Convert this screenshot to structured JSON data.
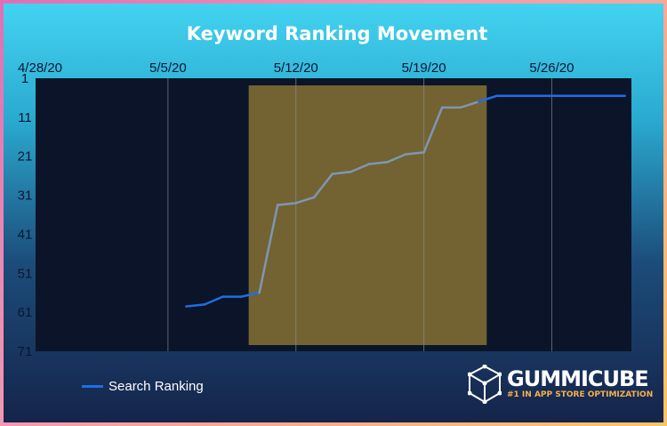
{
  "colors": {
    "plot_bg": "#0b1428",
    "line": "#1d6fe6",
    "line_highlighted": "#7f96b4",
    "highlight_band": "#7d6a33",
    "gridline": "#8a8f99",
    "logo_accent": "#f7b04a"
  },
  "chart_data": {
    "type": "line",
    "title": "Keyword Ranking Movement",
    "x_axis": {
      "position": "top",
      "tick_labels": [
        "4/28/20",
        "5/5/20",
        "5/12/20",
        "5/19/20",
        "5/26/20"
      ],
      "range": [
        "2020-04-28",
        "2020-05-30"
      ],
      "grid": true
    },
    "y_axis": {
      "inverted": true,
      "range": [
        1,
        71
      ],
      "ticks": [
        1,
        11,
        21,
        31,
        41,
        51,
        61,
        71
      ],
      "grid": false
    },
    "highlight_band": {
      "x_start": "2020-05-10",
      "x_end": "2020-05-22"
    },
    "legend": {
      "placement": "bottom-left"
    },
    "series": [
      {
        "name": "Search Ranking",
        "color": "#1d6fe6",
        "points": [
          [
            "2020-05-06",
            59.5
          ],
          [
            "2020-05-07",
            59
          ],
          [
            "2020-05-08",
            57
          ],
          [
            "2020-05-09",
            57
          ],
          [
            "2020-05-10",
            56
          ],
          [
            "2020-05-11",
            33.5
          ],
          [
            "2020-05-12",
            33
          ],
          [
            "2020-05-13",
            31.5
          ],
          [
            "2020-05-14",
            25.5
          ],
          [
            "2020-05-15",
            25
          ],
          [
            "2020-05-16",
            23
          ],
          [
            "2020-05-17",
            22.5
          ],
          [
            "2020-05-18",
            20.5
          ],
          [
            "2020-05-19",
            20
          ],
          [
            "2020-05-20",
            8.5
          ],
          [
            "2020-05-21",
            8.5
          ],
          [
            "2020-05-22",
            7
          ],
          [
            "2020-05-23",
            5.5
          ],
          [
            "2020-05-24",
            5.5
          ],
          [
            "2020-05-25",
            5.5
          ],
          [
            "2020-05-26",
            5.5
          ],
          [
            "2020-05-27",
            5.5
          ],
          [
            "2020-05-28",
            5.5
          ],
          [
            "2020-05-29",
            5.5
          ],
          [
            "2020-05-30",
            5.5
          ]
        ]
      }
    ]
  },
  "logo": {
    "brand": "GUMMICUBE",
    "tagline": "#1 IN APP STORE OPTIMIZATION",
    "icon": "cube-icon"
  }
}
